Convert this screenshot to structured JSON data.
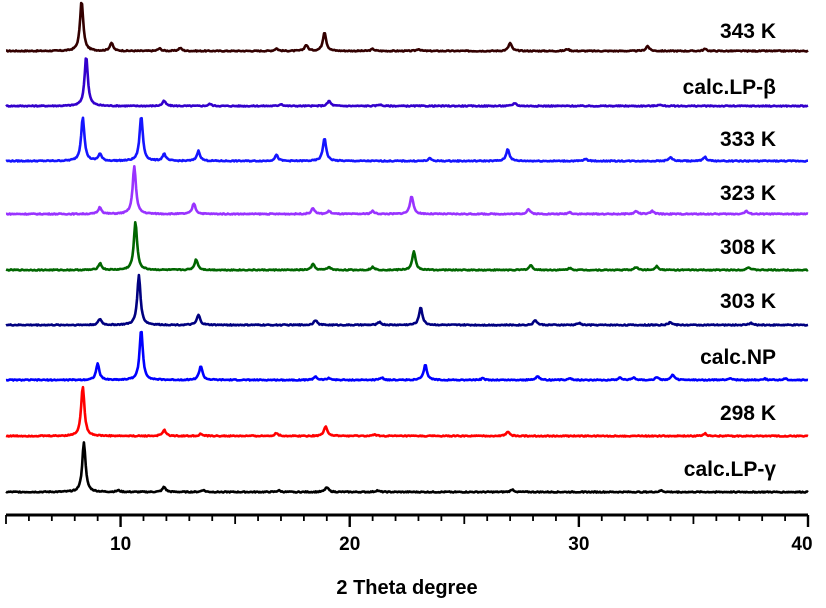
{
  "chart_data": {
    "type": "line",
    "xlabel": "2 Theta degree",
    "ylabel": "",
    "xlim": [
      5,
      40
    ],
    "xticks": [
      10,
      20,
      30,
      40
    ],
    "y_axis_visible": false,
    "legend": "labels at right of each stacked trace",
    "series": [
      {
        "name": "343 K",
        "color": "#330000",
        "peaks": [
          [
            8.3,
            1.0
          ],
          [
            9.6,
            0.16
          ],
          [
            11.7,
            0.05
          ],
          [
            12.6,
            0.06
          ],
          [
            16.8,
            0.05
          ],
          [
            18.1,
            0.12
          ],
          [
            18.9,
            0.38
          ],
          [
            21.0,
            0.04
          ],
          [
            23.0,
            0.04
          ],
          [
            27.0,
            0.16
          ],
          [
            29.5,
            0.04
          ],
          [
            33.0,
            0.1
          ],
          [
            35.5,
            0.04
          ]
        ]
      },
      {
        "name": "calc.LP-β",
        "color": "#3300cc",
        "peaks": [
          [
            8.5,
            1.0
          ],
          [
            11.9,
            0.1
          ],
          [
            13.9,
            0.04
          ],
          [
            17.0,
            0.04
          ],
          [
            19.1,
            0.1
          ],
          [
            21.3,
            0.03
          ],
          [
            27.2,
            0.06
          ],
          [
            33.5,
            0.03
          ]
        ]
      },
      {
        "name": "333 K",
        "color": "#1515ff",
        "peaks": [
          [
            8.35,
            0.88
          ],
          [
            9.1,
            0.14
          ],
          [
            10.9,
            0.9
          ],
          [
            11.9,
            0.14
          ],
          [
            13.4,
            0.2
          ],
          [
            16.8,
            0.12
          ],
          [
            18.9,
            0.46
          ],
          [
            23.5,
            0.05
          ],
          [
            26.9,
            0.24
          ],
          [
            30.3,
            0.04
          ],
          [
            34.0,
            0.08
          ],
          [
            35.5,
            0.08
          ]
        ]
      },
      {
        "name": "323 K",
        "color": "#9933ff",
        "peaks": [
          [
            9.1,
            0.14
          ],
          [
            10.6,
            1.0
          ],
          [
            13.2,
            0.22
          ],
          [
            18.4,
            0.12
          ],
          [
            19.1,
            0.06
          ],
          [
            21.0,
            0.06
          ],
          [
            22.7,
            0.38
          ],
          [
            27.8,
            0.1
          ],
          [
            29.6,
            0.04
          ],
          [
            32.5,
            0.06
          ],
          [
            33.2,
            0.06
          ],
          [
            37.3,
            0.06
          ]
        ]
      },
      {
        "name": "308 K",
        "color": "#006600",
        "peaks": [
          [
            9.1,
            0.14
          ],
          [
            10.65,
            1.0
          ],
          [
            13.3,
            0.22
          ],
          [
            18.4,
            0.12
          ],
          [
            19.1,
            0.06
          ],
          [
            21.0,
            0.06
          ],
          [
            22.8,
            0.38
          ],
          [
            27.9,
            0.1
          ],
          [
            29.6,
            0.04
          ],
          [
            32.5,
            0.06
          ],
          [
            33.4,
            0.08
          ],
          [
            37.4,
            0.06
          ]
        ]
      },
      {
        "name": "303 K",
        "color": "#000080",
        "peaks": [
          [
            9.1,
            0.12
          ],
          [
            10.8,
            1.0
          ],
          [
            13.4,
            0.2
          ],
          [
            18.5,
            0.1
          ],
          [
            21.3,
            0.06
          ],
          [
            23.1,
            0.36
          ],
          [
            28.1,
            0.1
          ],
          [
            30.0,
            0.04
          ],
          [
            34.0,
            0.06
          ],
          [
            37.5,
            0.04
          ]
        ]
      },
      {
        "name": "calc.NP",
        "color": "#0000ff",
        "peaks": [
          [
            9.0,
            0.32
          ],
          [
            10.9,
            1.0
          ],
          [
            13.5,
            0.28
          ],
          [
            18.5,
            0.07
          ],
          [
            19.1,
            0.04
          ],
          [
            21.4,
            0.05
          ],
          [
            23.3,
            0.3
          ],
          [
            25.8,
            0.03
          ],
          [
            28.2,
            0.08
          ],
          [
            29.6,
            0.04
          ],
          [
            31.8,
            0.05
          ],
          [
            32.4,
            0.05
          ],
          [
            33.4,
            0.05
          ],
          [
            34.1,
            0.1
          ],
          [
            36.6,
            0.04
          ],
          [
            38.1,
            0.03
          ],
          [
            39.0,
            0.03
          ]
        ]
      },
      {
        "name": "298 K",
        "color": "#ff0000",
        "peaks": [
          [
            8.35,
            1.0
          ],
          [
            11.9,
            0.12
          ],
          [
            13.5,
            0.04
          ],
          [
            16.8,
            0.06
          ],
          [
            18.95,
            0.2
          ],
          [
            21.1,
            0.03
          ],
          [
            26.9,
            0.09
          ],
          [
            35.5,
            0.05
          ]
        ]
      },
      {
        "name": "calc.LP-γ",
        "color": "#000000",
        "peaks": [
          [
            8.4,
            1.0
          ],
          [
            9.9,
            0.03
          ],
          [
            11.9,
            0.1
          ],
          [
            13.6,
            0.04
          ],
          [
            16.9,
            0.03
          ],
          [
            19.0,
            0.1
          ],
          [
            21.2,
            0.03
          ],
          [
            27.1,
            0.05
          ],
          [
            33.6,
            0.03
          ]
        ]
      }
    ]
  }
}
